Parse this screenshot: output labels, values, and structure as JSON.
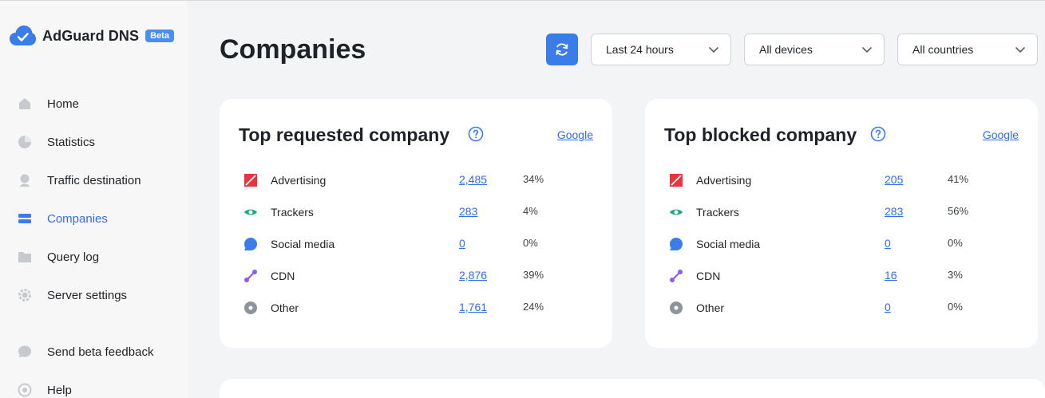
{
  "app": {
    "name": "AdGuard DNS",
    "badge": "Beta"
  },
  "sidebar": {
    "items": [
      {
        "label": "Home",
        "icon": "home-icon"
      },
      {
        "label": "Statistics",
        "icon": "pie-chart-icon"
      },
      {
        "label": "Traffic destination",
        "icon": "location-pin-icon"
      },
      {
        "label": "Companies",
        "icon": "companies-icon",
        "active": true
      },
      {
        "label": "Query log",
        "icon": "folder-icon"
      },
      {
        "label": "Server settings",
        "icon": "gear-icon"
      },
      {
        "label": "Send beta feedback",
        "icon": "chat-bubble-icon"
      },
      {
        "label": "Help",
        "icon": "help-circle-icon"
      }
    ]
  },
  "header": {
    "title": "Companies",
    "filters": {
      "time": "Last 24 hours",
      "devices": "All devices",
      "countries": "All countries"
    }
  },
  "colors": {
    "accent": "#3a7de9",
    "advertising": "#e8343c",
    "trackers": "#1dab74",
    "social": "#3a7de9",
    "cdn": "#8b5cf6",
    "other": "#8e949c"
  },
  "cards": {
    "requested": {
      "title": "Top requested company",
      "link": "Google",
      "rows": [
        {
          "label": "Advertising",
          "count": "2,485",
          "pct": "34%"
        },
        {
          "label": "Trackers",
          "count": "283",
          "pct": "4%"
        },
        {
          "label": "Social media",
          "count": "0",
          "pct": "0%"
        },
        {
          "label": "CDN",
          "count": "2,876",
          "pct": "39%"
        },
        {
          "label": "Other",
          "count": "1,761",
          "pct": "24%"
        }
      ]
    },
    "blocked": {
      "title": "Top blocked company",
      "link": "Google",
      "rows": [
        {
          "label": "Advertising",
          "count": "205",
          "pct": "41%"
        },
        {
          "label": "Trackers",
          "count": "283",
          "pct": "56%"
        },
        {
          "label": "Social media",
          "count": "0",
          "pct": "0%"
        },
        {
          "label": "CDN",
          "count": "16",
          "pct": "3%"
        },
        {
          "label": "Other",
          "count": "0",
          "pct": "0%"
        }
      ]
    }
  }
}
